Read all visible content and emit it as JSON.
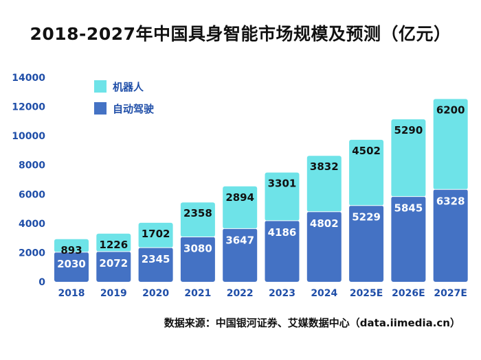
{
  "title": "2018-2027年中国具身智能市场规模及预测（亿元）",
  "source": "数据来源：中国银河证券、艾媒数据中心（data.iimedia.cn）",
  "colors": {
    "robot": "#6ee3e8",
    "autonomous": "#4472c4",
    "axis_text": "#1f4ea8",
    "label_dark": "#111111",
    "label_light": "#ffffff"
  },
  "chart_data": {
    "type": "bar",
    "stacked": true,
    "categories": [
      "2018",
      "2019",
      "2020",
      "2021",
      "2022",
      "2023",
      "2024",
      "2025E",
      "2026E",
      "2027E"
    ],
    "series": [
      {
        "name": "自动驾驶",
        "values": [
          2030,
          2072,
          2345,
          3080,
          3647,
          4186,
          4802,
          5229,
          5845,
          6328
        ]
      },
      {
        "name": "机器人",
        "values": [
          893,
          1226,
          1702,
          2358,
          2894,
          3301,
          3832,
          4502,
          5290,
          6200
        ]
      }
    ],
    "ylim": [
      0,
      14000
    ],
    "yticks": [
      "0",
      "2000",
      "4000",
      "6000",
      "8000",
      "10000",
      "12000",
      "14000"
    ],
    "legend": [
      "机器人",
      "自动驾驶"
    ],
    "legend_position": "top-left",
    "grid": false
  }
}
